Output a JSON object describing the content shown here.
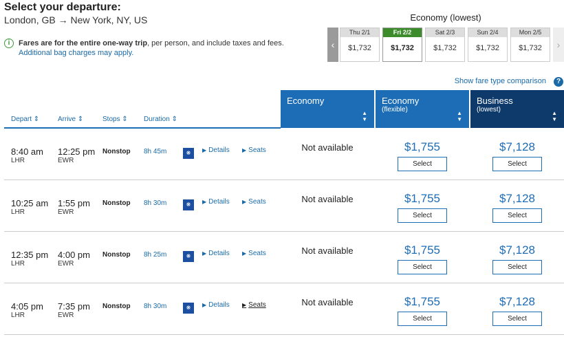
{
  "header": {
    "title": "Select your departure:",
    "route": "London, GB → New York, NY, US"
  },
  "info": {
    "icon": "info-icon",
    "text_bold": "Fares are for the entire one-way trip",
    "text_rest": ", per person, and include taxes and fees.",
    "link": "Additional bag charges may apply."
  },
  "calendar": {
    "title": "Economy (lowest)",
    "days": [
      {
        "label": "Thu 2/1",
        "price": "$1,732"
      },
      {
        "label": "Fri 2/2",
        "price": "$1,732"
      },
      {
        "label": "Sat 2/3",
        "price": "$1,732"
      },
      {
        "label": "Sun 2/4",
        "price": "$1,732"
      },
      {
        "label": "Mon 2/5",
        "price": "$1,732"
      }
    ],
    "selected_index": 1
  },
  "compare_link": "Show fare type comparison",
  "columns": {
    "depart": "Depart",
    "arrive": "Arrive",
    "stops": "Stops",
    "duration": "Duration",
    "economy": {
      "title": "Economy",
      "sub": ""
    },
    "economy_flex": {
      "title": "Economy",
      "sub": "(flexible)"
    },
    "business": {
      "title": "Business",
      "sub": "(lowest)"
    }
  },
  "flights": [
    {
      "depart": "8:40 am",
      "depart_ap": "LHR",
      "arrive": "12:25 pm",
      "arrive_ap": "EWR",
      "stops": "Nonstop",
      "duration": "8h 45m",
      "details": "Details",
      "seats": "Seats",
      "economy": "Not available",
      "flex_price": "$1,755",
      "business_price": "$7,128",
      "select": "Select"
    },
    {
      "depart": "10:25 am",
      "depart_ap": "LHR",
      "arrive": "1:55 pm",
      "arrive_ap": "EWR",
      "stops": "Nonstop",
      "duration": "8h 30m",
      "details": "Details",
      "seats": "Seats",
      "economy": "Not available",
      "flex_price": "$1,755",
      "business_price": "$7,128",
      "select": "Select"
    },
    {
      "depart": "12:35 pm",
      "depart_ap": "LHR",
      "arrive": "4:00 pm",
      "arrive_ap": "EWR",
      "stops": "Nonstop",
      "duration": "8h 25m",
      "details": "Details",
      "seats": "Seats",
      "economy": "Not available",
      "flex_price": "$1,755",
      "business_price": "$7,128",
      "select": "Select"
    },
    {
      "depart": "4:05 pm",
      "depart_ap": "LHR",
      "arrive": "7:35 pm",
      "arrive_ap": "EWR",
      "stops": "Nonstop",
      "duration": "8h 30m",
      "details": "Details",
      "seats": "Seats",
      "economy": "Not available",
      "flex_price": "$1,755",
      "business_price": "$7,128",
      "select": "Select"
    }
  ],
  "colors": {
    "brand_blue": "#1c6cb6",
    "navy": "#0d3a6b",
    "selected_green": "#3c8c2c"
  }
}
